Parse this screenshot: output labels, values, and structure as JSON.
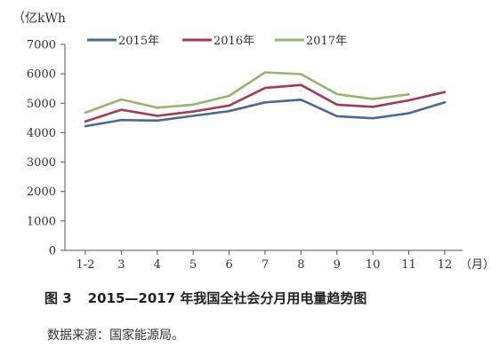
{
  "chart_data": {
    "type": "line",
    "unit_label": "（亿kWh",
    "x_end_label": "（月）",
    "categories": [
      "1-2",
      "3",
      "4",
      "5",
      "6",
      "7",
      "8",
      "9",
      "10",
      "11",
      "12"
    ],
    "ylim": [
      0,
      7000
    ],
    "yticks": [
      0,
      1000,
      2000,
      3000,
      4000,
      5000,
      6000,
      7000
    ],
    "grid": false,
    "legend_position": "top",
    "series": [
      {
        "name": "2015年",
        "color": "#4a6a96",
        "values": [
          4220,
          4430,
          4410,
          4570,
          4730,
          5030,
          5120,
          4560,
          4490,
          4660,
          5030
        ]
      },
      {
        "name": "2016年",
        "color": "#a23a55",
        "values": [
          4380,
          4780,
          4570,
          4720,
          4920,
          5520,
          5620,
          4950,
          4880,
          5100,
          5380
        ]
      },
      {
        "name": "2017年",
        "color": "#9bb36a",
        "values": [
          4680,
          5130,
          4850,
          4950,
          5250,
          6050,
          5990,
          5310,
          5140,
          5300,
          null
        ]
      }
    ]
  },
  "caption": {
    "figure_number": "图 3",
    "title": "2015—2017 年我国全社会分月用电量趋势图"
  },
  "source": "数据来源：国家能源局。"
}
